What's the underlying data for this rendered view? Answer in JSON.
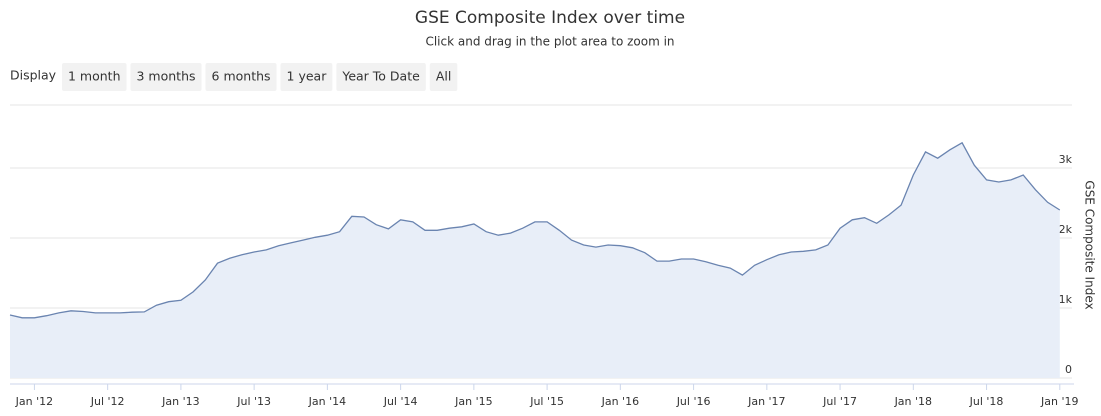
{
  "chart_data": {
    "type": "area",
    "title": "GSE Composite Index over time",
    "subtitle": "Click and drag in the plot area to zoom in",
    "range_selector": {
      "label": "Display",
      "buttons": [
        "1 month",
        "3 months",
        "6 months",
        "1 year",
        "Year To Date",
        "All"
      ]
    },
    "y_axis_label": "GSE Composite Index",
    "x": [
      "2011-11",
      "2011-12",
      "2012-01",
      "2012-02",
      "2012-03",
      "2012-04",
      "2012-05",
      "2012-06",
      "2012-07",
      "2012-08",
      "2012-09",
      "2012-10",
      "2012-11",
      "2012-12",
      "2013-01",
      "2013-02",
      "2013-03",
      "2013-04",
      "2013-05",
      "2013-06",
      "2013-07",
      "2013-08",
      "2013-09",
      "2013-10",
      "2013-11",
      "2013-12",
      "2014-01",
      "2014-02",
      "2014-03",
      "2014-04",
      "2014-05",
      "2014-06",
      "2014-07",
      "2014-08",
      "2014-09",
      "2014-10",
      "2014-11",
      "2014-12",
      "2015-01",
      "2015-02",
      "2015-03",
      "2015-04",
      "2015-05",
      "2015-06",
      "2015-07",
      "2015-08",
      "2015-09",
      "2015-10",
      "2015-11",
      "2015-12",
      "2016-01",
      "2016-02",
      "2016-03",
      "2016-04",
      "2016-05",
      "2016-06",
      "2016-07",
      "2016-08",
      "2016-09",
      "2016-10",
      "2016-11",
      "2016-12",
      "2017-01",
      "2017-02",
      "2017-03",
      "2017-04",
      "2017-05",
      "2017-06",
      "2017-07",
      "2017-08",
      "2017-09",
      "2017-10",
      "2017-11",
      "2017-12",
      "2018-01",
      "2018-02",
      "2018-03",
      "2018-04",
      "2018-05",
      "2018-06",
      "2018-07",
      "2018-08",
      "2018-09",
      "2018-10",
      "2018-11",
      "2018-12",
      "2019-01"
    ],
    "values": [
      900,
      860,
      860,
      890,
      930,
      960,
      950,
      930,
      930,
      930,
      940,
      945,
      1040,
      1090,
      1110,
      1230,
      1400,
      1640,
      1710,
      1760,
      1800,
      1830,
      1890,
      1930,
      1970,
      2010,
      2040,
      2090,
      2310,
      2300,
      2190,
      2130,
      2260,
      2230,
      2110,
      2110,
      2140,
      2160,
      2200,
      2090,
      2040,
      2070,
      2140,
      2230,
      2230,
      2110,
      1970,
      1900,
      1870,
      1900,
      1890,
      1860,
      1790,
      1670,
      1670,
      1700,
      1700,
      1660,
      1610,
      1570,
      1470,
      1610,
      1690,
      1760,
      1800,
      1810,
      1830,
      1900,
      2140,
      2260,
      2290,
      2210,
      2330,
      2470,
      2900,
      3230,
      3140,
      3260,
      3360,
      3040,
      2830,
      2800,
      2830,
      2900,
      2690,
      2510,
      2400
    ],
    "color": "#6a84b0",
    "fill_color": "#e8eef8",
    "xlim": [
      "2011-11",
      "2019-02"
    ],
    "xticks": [
      {
        "value": "2012-01",
        "label": "Jan '12"
      },
      {
        "value": "2012-07",
        "label": "Jul '12"
      },
      {
        "value": "2013-01",
        "label": "Jan '13"
      },
      {
        "value": "2013-07",
        "label": "Jul '13"
      },
      {
        "value": "2014-01",
        "label": "Jan '14"
      },
      {
        "value": "2014-07",
        "label": "Jul '14"
      },
      {
        "value": "2015-01",
        "label": "Jan '15"
      },
      {
        "value": "2015-07",
        "label": "Jul '15"
      },
      {
        "value": "2016-01",
        "label": "Jan '16"
      },
      {
        "value": "2016-07",
        "label": "Jul '16"
      },
      {
        "value": "2017-01",
        "label": "Jan '17"
      },
      {
        "value": "2017-07",
        "label": "Jul '17"
      },
      {
        "value": "2018-01",
        "label": "Jan '18"
      },
      {
        "value": "2018-07",
        "label": "Jul '18"
      },
      {
        "value": "2019-01",
        "label": "Jan '19"
      }
    ],
    "ylim": [
      0,
      3900
    ],
    "yticks": [
      0,
      {
        "value": 1000,
        "label": "1k"
      },
      {
        "value": 2000,
        "label": "2k"
      },
      {
        "value": 3000,
        "label": "3k"
      }
    ],
    "grid": true
  }
}
